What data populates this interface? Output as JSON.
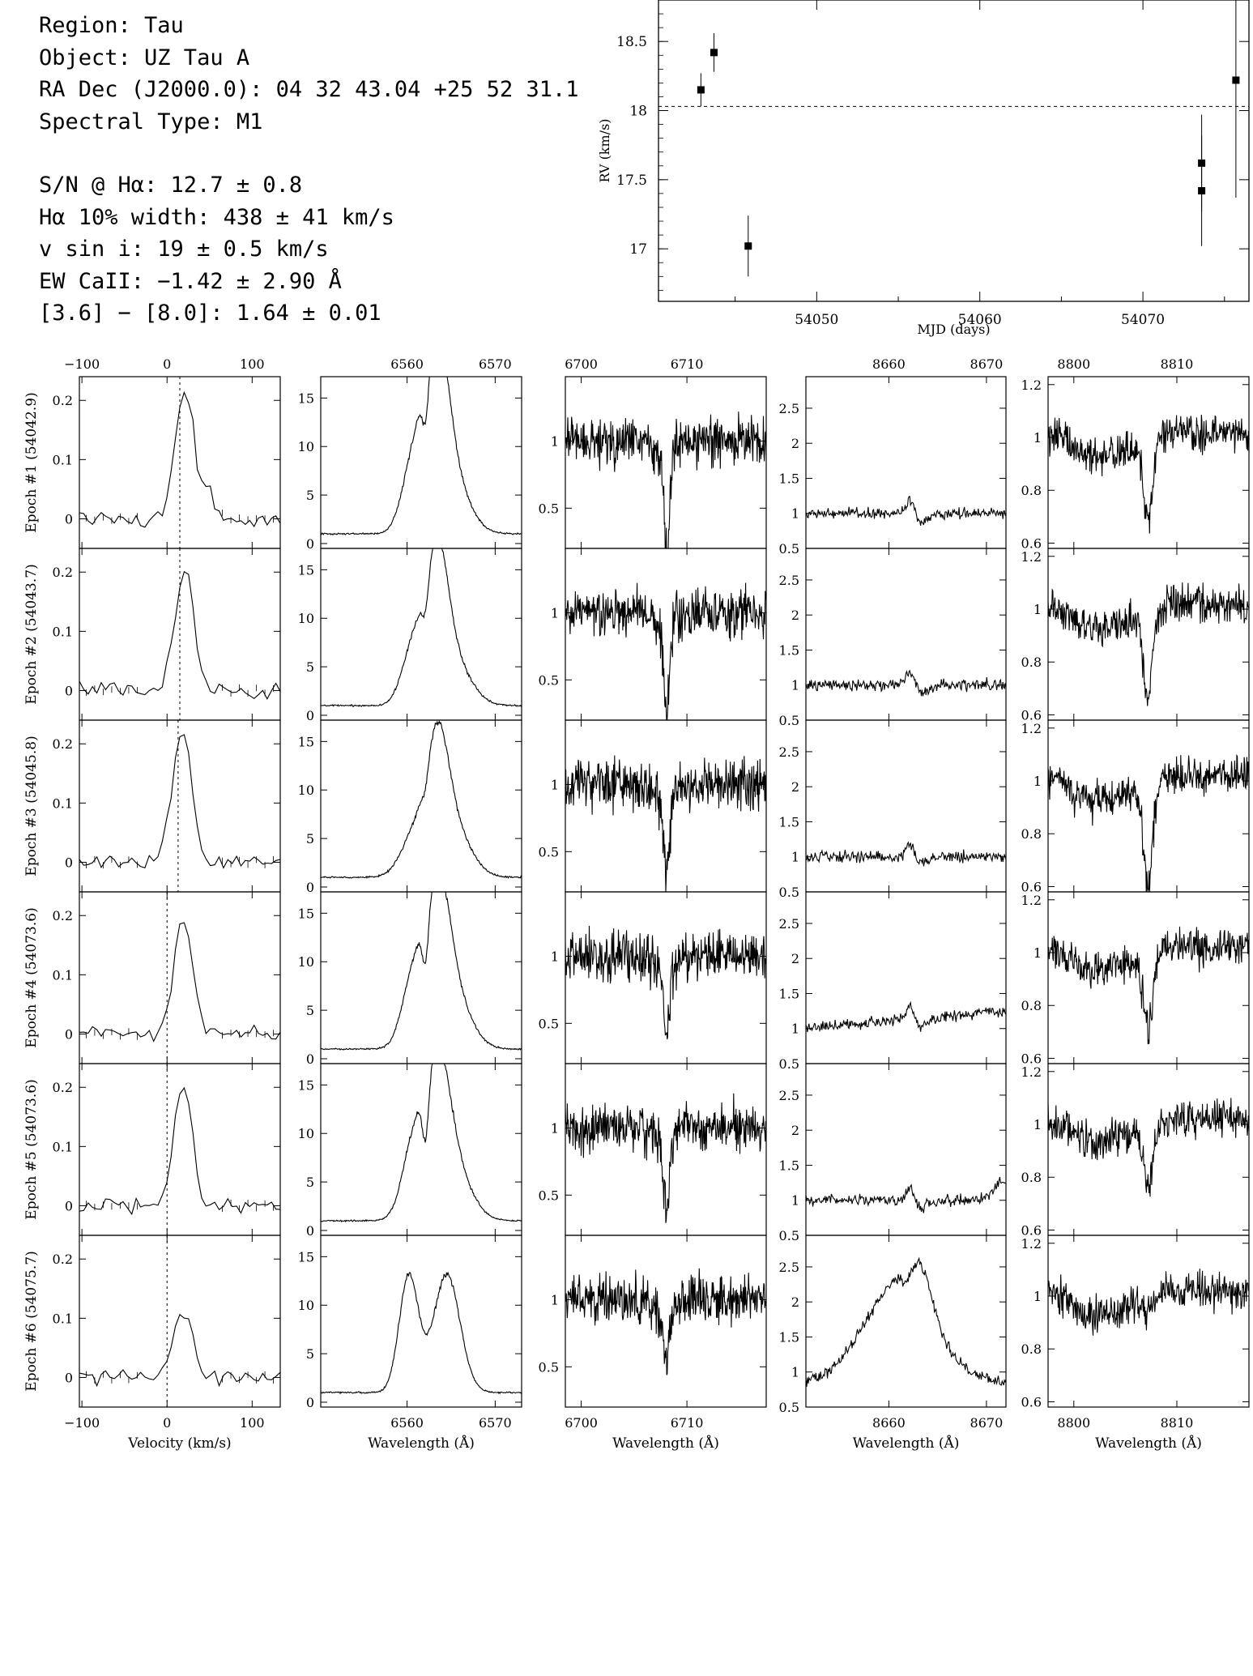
{
  "info": {
    "region": "Region: Tau",
    "object": "Object: UZ Tau A",
    "radec": "RA Dec (J2000.0): 04 32 43.04 +25 52 31.1",
    "sptype": "Spectral Type: M1",
    "sn": "S/N @ Hα: 12.7 ± 0.8",
    "ha_width": "Hα 10% width: 438 ± 41 km/s",
    "vsini": "v sin i: 19 ± 0.5 km/s",
    "ew_caII": "EW CaII: −1.42 ± 2.90 Å",
    "color": "[3.6] − [8.0]: 1.64 ± 0.01"
  },
  "chart_data": [
    {
      "type": "scatter",
      "xlabel": "MJD (days)",
      "ylabel": "RV (km/s)",
      "xlim": [
        54040.3,
        54076.5
      ],
      "ylim": [
        16.62,
        18.8
      ],
      "xticks": [
        54050,
        54060,
        54070
      ],
      "yticks": [
        17,
        17.5,
        18,
        18.5
      ],
      "mean_line": 18.03,
      "points": [
        {
          "x": 54042.9,
          "y": 18.15,
          "err": 0.12
        },
        {
          "x": 54043.7,
          "y": 18.42,
          "err": 0.14
        },
        {
          "x": 54045.8,
          "y": 17.02,
          "err": 0.22
        },
        {
          "x": 54073.6,
          "y": 17.62,
          "err": 0.35
        },
        {
          "x": 54073.6,
          "y": 17.42,
          "err": 0.4
        },
        {
          "x": 54075.7,
          "y": 18.22,
          "err": 0.85
        }
      ]
    },
    {
      "type": "line",
      "layout": "6 epochs (rows) × 5 spectral panels (columns)",
      "epochs": [
        "Epoch #1 (54042.9)",
        "Epoch #2 (54043.7)",
        "Epoch #3 (54045.8)",
        "Epoch #4 (54073.6)",
        "Epoch #5 (54073.6)",
        "Epoch #6 (54075.7)"
      ],
      "columns": [
        {
          "xlabel": "Velocity (km/s)",
          "xlim": [
            -103,
            133
          ],
          "xticks": [
            -100,
            0,
            100
          ],
          "ylim": [
            -0.05,
            0.24
          ],
          "yticks": [
            0,
            0.1,
            0.2
          ],
          "rv_marker_kms": [
            15,
            15,
            13,
            0,
            0,
            0
          ]
        },
        {
          "xlabel": "Wavelength (Å)",
          "xlim": [
            6550.2,
            6573
          ],
          "xticks": [
            6560,
            6570
          ],
          "ylim": [
            -0.5,
            17.2
          ],
          "yticks": [
            0,
            5,
            10,
            15
          ]
        },
        {
          "xlabel": "Wavelength (Å)",
          "xlim": [
            6698.5,
            6717.5
          ],
          "xticks": [
            6700,
            6710
          ],
          "ylim": [
            0.2,
            1.48
          ],
          "yticks": [
            0.5,
            1
          ]
        },
        {
          "xlabel": "Wavelength (Å)",
          "xlim": [
            8651.5,
            8672
          ],
          "xticks": [
            8660,
            8670
          ],
          "ylim": [
            0.5,
            2.95
          ],
          "yticks": [
            0.5,
            1,
            1.5,
            2,
            2.5
          ]
        },
        {
          "xlabel": "Wavelength (Å)",
          "xlim": [
            8797.5,
            8817
          ],
          "xticks": [
            8800,
            8810
          ],
          "ylim": [
            0.58,
            1.23
          ],
          "yticks": [
            0.6,
            0.8,
            1,
            1.2
          ]
        }
      ]
    }
  ]
}
